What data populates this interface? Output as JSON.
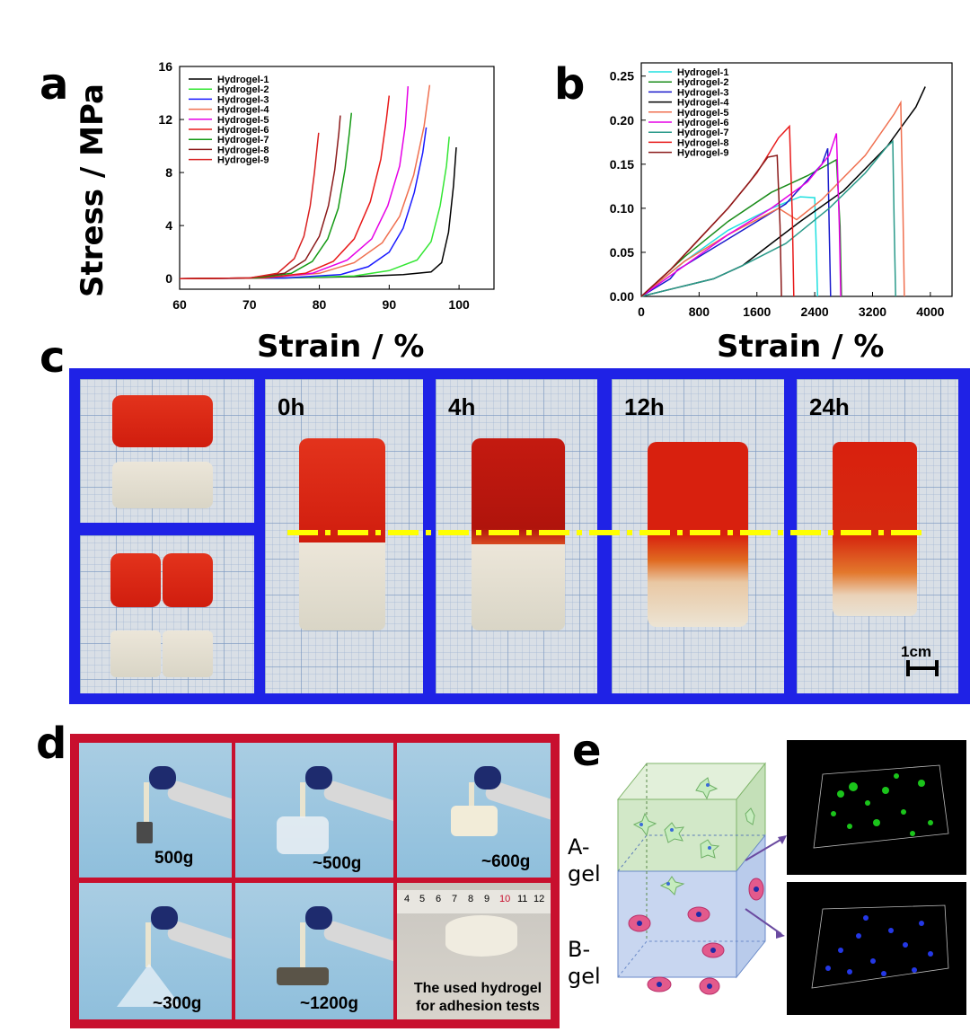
{
  "panels": {
    "a": {
      "letter": "a",
      "ylabel": "Stress / MPa",
      "xlabel": "Strain / %"
    },
    "b": {
      "letter": "b",
      "xlabel": "Strain / %"
    },
    "c": {
      "letter": "c",
      "times": [
        "0h",
        "4h",
        "12h",
        "24h"
      ],
      "scale_bar": "1cm",
      "colors": {
        "frame": "#1f22e6",
        "gel_red": "#d8220f",
        "gel_clear": "#e6e0d2",
        "dashline": "#ffff00"
      }
    },
    "d": {
      "letter": "d",
      "labels": [
        "500g",
        "~500g",
        "~600g",
        "~300g",
        "~1200g"
      ],
      "caption_line1": "The used hydrogel",
      "caption_line2": "for adhesion tests",
      "ruler_numbers": [
        "4",
        "5",
        "6",
        "7",
        "8",
        "9",
        "10",
        "11",
        "12"
      ],
      "colors": {
        "frame": "#c8102e"
      }
    },
    "e": {
      "letter": "e",
      "a_gel_line1": "A-",
      "a_gel_line2": "gel",
      "b_gel_line1": "B-",
      "b_gel_line2": "gel",
      "colors": {
        "a_gel": "#cfe8c0",
        "b_gel": "#c6d6f2",
        "cell_green": "#bfe8b8",
        "cell_pink": "#e0407a"
      }
    }
  },
  "chart_data": [
    {
      "type": "line",
      "panel": "a",
      "xlabel": "Strain / %",
      "ylabel": "Stress / MPa",
      "xlim": [
        60,
        105
      ],
      "ylim": [
        -0.8,
        16
      ],
      "xticks": [
        "60",
        "70",
        "80",
        "90",
        "100"
      ],
      "yticks": [
        "0",
        "4",
        "8",
        "12",
        "16"
      ],
      "legend_position": "top-left",
      "series": [
        {
          "name": "Hydrogel-1",
          "color": "#000000",
          "points": [
            [
              60,
              0
            ],
            [
              75,
              0.05
            ],
            [
              85,
              0.15
            ],
            [
              92,
              0.3
            ],
            [
              96,
              0.5
            ],
            [
              97.5,
              1.2
            ],
            [
              98.5,
              3.5
            ],
            [
              99.2,
              7
            ],
            [
              99.6,
              9.9
            ]
          ]
        },
        {
          "name": "Hydrogel-2",
          "color": "#33e633",
          "points": [
            [
              60,
              0
            ],
            [
              75,
              0.05
            ],
            [
              85,
              0.2
            ],
            [
              90,
              0.6
            ],
            [
              94,
              1.4
            ],
            [
              96,
              2.8
            ],
            [
              97.3,
              5.5
            ],
            [
              98.2,
              8.5
            ],
            [
              98.6,
              10.7
            ]
          ]
        },
        {
          "name": "Hydrogel-3",
          "color": "#1a1aff",
          "points": [
            [
              60,
              0
            ],
            [
              75,
              0.05
            ],
            [
              83,
              0.3
            ],
            [
              87,
              0.9
            ],
            [
              90,
              2
            ],
            [
              92,
              3.8
            ],
            [
              93.6,
              6.5
            ],
            [
              94.8,
              9.5
            ],
            [
              95.3,
              11.4
            ]
          ]
        },
        {
          "name": "Hydrogel-4",
          "color": "#f07050",
          "points": [
            [
              60,
              0
            ],
            [
              72,
              0.05
            ],
            [
              80,
              0.4
            ],
            [
              85,
              1.2
            ],
            [
              89,
              2.7
            ],
            [
              91.5,
              4.7
            ],
            [
              93.5,
              7.8
            ],
            [
              95,
              11.5
            ],
            [
              95.8,
              14.6
            ]
          ]
        },
        {
          "name": "Hydrogel-5",
          "color": "#e600e6",
          "points": [
            [
              60,
              0
            ],
            [
              72,
              0.05
            ],
            [
              79,
              0.4
            ],
            [
              84,
              1.4
            ],
            [
              87.5,
              3
            ],
            [
              89.8,
              5.5
            ],
            [
              91.5,
              8.5
            ],
            [
              92.3,
              11.5
            ],
            [
              92.7,
              14.5
            ]
          ]
        },
        {
          "name": "Hydrogel-6",
          "color": "#e81a1a",
          "points": [
            [
              60,
              0
            ],
            [
              72,
              0.05
            ],
            [
              78,
              0.4
            ],
            [
              82,
              1.3
            ],
            [
              85,
              3
            ],
            [
              87.3,
              5.8
            ],
            [
              88.8,
              9
            ],
            [
              89.6,
              12
            ],
            [
              90,
              13.8
            ]
          ]
        },
        {
          "name": "Hydrogel-7",
          "color": "#159a15",
          "points": [
            [
              60,
              0
            ],
            [
              71,
              0.05
            ],
            [
              76,
              0.4
            ],
            [
              79,
              1.3
            ],
            [
              81.2,
              3
            ],
            [
              82.7,
              5.3
            ],
            [
              83.7,
              8.3
            ],
            [
              84.3,
              11
            ],
            [
              84.6,
              12.5
            ]
          ]
        },
        {
          "name": "Hydrogel-8",
          "color": "#8b1a1a",
          "points": [
            [
              60,
              0
            ],
            [
              70,
              0.05
            ],
            [
              75,
              0.4
            ],
            [
              78,
              1.4
            ],
            [
              80,
              3.2
            ],
            [
              81.3,
              5.5
            ],
            [
              82.2,
              8.2
            ],
            [
              82.8,
              11
            ],
            [
              83,
              12.3
            ]
          ]
        },
        {
          "name": "Hydrogel-9",
          "color": "#d92020",
          "points": [
            [
              60,
              0
            ],
            [
              70,
              0.05
            ],
            [
              74,
              0.4
            ],
            [
              76.4,
              1.5
            ],
            [
              77.8,
              3.2
            ],
            [
              78.7,
              5.5
            ],
            [
              79.3,
              8
            ],
            [
              79.7,
              10
            ],
            [
              79.9,
              11
            ]
          ]
        }
      ]
    },
    {
      "type": "line",
      "panel": "b",
      "xlabel": "Strain / %",
      "ylabel": "",
      "xlim": [
        0,
        4300
      ],
      "ylim": [
        0,
        0.265
      ],
      "xticks": [
        "0",
        "800",
        "1600",
        "2400",
        "3200",
        "4000"
      ],
      "yticks": [
        "0.00",
        "0.05",
        "0.10",
        "0.15",
        "0.20",
        "0.25"
      ],
      "legend_position": "top-left",
      "series": [
        {
          "name": "Hydrogel-1",
          "color": "#20e0e0",
          "points": [
            [
              0,
              0
            ],
            [
              600,
              0.04
            ],
            [
              1200,
              0.075
            ],
            [
              1800,
              0.1
            ],
            [
              2200,
              0.113
            ],
            [
              2400,
              0.112
            ],
            [
              2420,
              0.06
            ],
            [
              2440,
              0
            ]
          ]
        },
        {
          "name": "Hydrogel-2",
          "color": "#1a8c1a",
          "points": [
            [
              0,
              0
            ],
            [
              600,
              0.045
            ],
            [
              1200,
              0.085
            ],
            [
              1800,
              0.118
            ],
            [
              2300,
              0.137
            ],
            [
              2700,
              0.155
            ],
            [
              2750,
              0.08
            ],
            [
              2770,
              0
            ]
          ]
        },
        {
          "name": "Hydrogel-3",
          "color": "#1a1acc",
          "points": [
            [
              0,
              0
            ],
            [
              400,
              0.02
            ],
            [
              500,
              0.03
            ],
            [
              900,
              0.05
            ],
            [
              1400,
              0.075
            ],
            [
              2000,
              0.105
            ],
            [
              2500,
              0.15
            ],
            [
              2580,
              0.168
            ],
            [
              2600,
              0.08
            ],
            [
              2620,
              0
            ]
          ]
        },
        {
          "name": "Hydrogel-4",
          "color": "#000000",
          "points": [
            [
              0,
              0
            ],
            [
              500,
              0.01
            ],
            [
              1000,
              0.02
            ],
            [
              1400,
              0.035
            ],
            [
              1800,
              0.06
            ],
            [
              2200,
              0.085
            ],
            [
              2800,
              0.12
            ],
            [
              3400,
              0.17
            ],
            [
              3800,
              0.215
            ],
            [
              3930,
              0.238
            ]
          ]
        },
        {
          "name": "Hydrogel-5",
          "color": "#f07050",
          "points": [
            [
              0,
              0
            ],
            [
              600,
              0.04
            ],
            [
              1200,
              0.07
            ],
            [
              1900,
              0.1
            ],
            [
              2150,
              0.087
            ],
            [
              2500,
              0.11
            ],
            [
              3100,
              0.16
            ],
            [
              3500,
              0.207
            ],
            [
              3590,
              0.22
            ],
            [
              3620,
              0.1
            ],
            [
              3640,
              0
            ]
          ]
        },
        {
          "name": "Hydrogel-6",
          "color": "#e600e6",
          "points": [
            [
              0,
              0
            ],
            [
              600,
              0.035
            ],
            [
              1200,
              0.07
            ],
            [
              1800,
              0.1
            ],
            [
              2300,
              0.13
            ],
            [
              2600,
              0.16
            ],
            [
              2700,
              0.185
            ],
            [
              2740,
              0.08
            ],
            [
              2760,
              0
            ]
          ]
        },
        {
          "name": "Hydrogel-7",
          "color": "#2a9a8a",
          "points": [
            [
              0,
              0
            ],
            [
              500,
              0.01
            ],
            [
              1000,
              0.02
            ],
            [
              1400,
              0.035
            ],
            [
              2000,
              0.06
            ],
            [
              2600,
              0.1
            ],
            [
              3100,
              0.14
            ],
            [
              3400,
              0.17
            ],
            [
              3480,
              0.176
            ],
            [
              3500,
              0.08
            ],
            [
              3520,
              0
            ]
          ]
        },
        {
          "name": "Hydrogel-8",
          "color": "#e81a1a",
          "points": [
            [
              0,
              0
            ],
            [
              400,
              0.03
            ],
            [
              800,
              0.065
            ],
            [
              1200,
              0.1
            ],
            [
              1600,
              0.14
            ],
            [
              1900,
              0.18
            ],
            [
              2050,
              0.193
            ],
            [
              2090,
              0.09
            ],
            [
              2110,
              0
            ]
          ]
        },
        {
          "name": "Hydrogel-9",
          "color": "#8b1a1a",
          "points": [
            [
              0,
              0
            ],
            [
              400,
              0.03
            ],
            [
              800,
              0.065
            ],
            [
              1200,
              0.1
            ],
            [
              1500,
              0.13
            ],
            [
              1750,
              0.158
            ],
            [
              1880,
              0.16
            ],
            [
              1920,
              0.08
            ],
            [
              1940,
              0
            ]
          ]
        }
      ]
    }
  ]
}
